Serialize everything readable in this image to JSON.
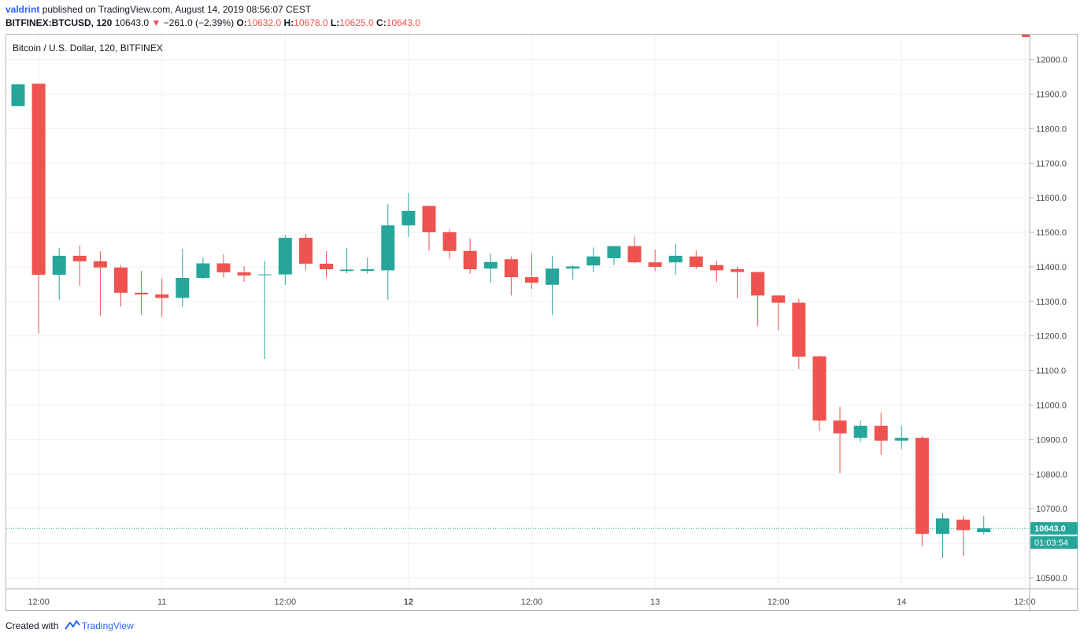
{
  "header": {
    "author": "valdrint",
    "published_text": "published on TradingView.com, August 14, 2019 08:56:07 CEST",
    "symbol": "BITFINEX:BTCUSD, 120",
    "last": "10643.0",
    "change": "−261.0 (−2.39%)",
    "o_label": "O:",
    "o": "10632.0",
    "h_label": "H:",
    "h": "10678.0",
    "l_label": "L:",
    "l": "10625.0",
    "c_label": "C:",
    "c": "10643.0"
  },
  "footer": {
    "created_with": "Created with",
    "brand": "TradingView"
  },
  "colors": {
    "up": "#26a69a",
    "down": "#ef5350",
    "grid": "#eef0f3",
    "axis": "#b2b5be",
    "text": "#4a4a4a"
  },
  "chart_data": {
    "type": "candlestick",
    "title": "Bitcoin / U.S. Dollar, 120, BITFINEX",
    "y_range": [
      10468,
      12072
    ],
    "y_ticks": [
      "10500.0",
      "10600.0",
      "10700.0",
      "10800.0",
      "10900.0",
      "11000.0",
      "11100.0",
      "11200.0",
      "11300.0",
      "11400.0",
      "11500.0",
      "11600.0",
      "11700.0",
      "11800.0",
      "11900.0",
      "12000.0"
    ],
    "x_labels": [
      {
        "label": "12:00",
        "bar": 1,
        "bold": false
      },
      {
        "label": "11",
        "bar": 7,
        "bold": false
      },
      {
        "label": "12:00",
        "bar": 13,
        "bold": false
      },
      {
        "label": "12",
        "bar": 19,
        "bold": true
      },
      {
        "label": "12:00",
        "bar": 25,
        "bold": false
      },
      {
        "label": "13",
        "bar": 31,
        "bold": false
      },
      {
        "label": "12:00",
        "bar": 37,
        "bold": false
      },
      {
        "label": "14",
        "bar": 43,
        "bold": false
      },
      {
        "label": "12:00",
        "bar": 49,
        "bold": false
      }
    ],
    "last_price_label": "10643.0",
    "countdown_label": "01:03:54",
    "last_price": 10643,
    "candles": [
      [
        11865,
        11930,
        11865,
        11928
      ],
      [
        11930,
        11930,
        11207,
        11377
      ],
      [
        11377,
        11455,
        11305,
        11432
      ],
      [
        11432,
        11462,
        11344,
        11416
      ],
      [
        11416,
        11445,
        11259,
        11398
      ],
      [
        11398,
        11405,
        11285,
        11325
      ],
      [
        11325,
        11388,
        11262,
        11320
      ],
      [
        11320,
        11366,
        11255,
        11310
      ],
      [
        11310,
        11452,
        11285,
        11368
      ],
      [
        11368,
        11427,
        11365,
        11410
      ],
      [
        11410,
        11436,
        11369,
        11384
      ],
      [
        11384,
        11402,
        11357,
        11375
      ],
      [
        11378,
        11417,
        11133,
        11378
      ],
      [
        11378,
        11492,
        11348,
        11484
      ],
      [
        11484,
        11496,
        11390,
        11409
      ],
      [
        11409,
        11446,
        11369,
        11393
      ],
      [
        11388,
        11455,
        11381,
        11392
      ],
      [
        11388,
        11427,
        11381,
        11393
      ],
      [
        11390,
        11581,
        11305,
        11520
      ],
      [
        11520,
        11614,
        11487,
        11562
      ],
      [
        11576,
        11578,
        11446,
        11500
      ],
      [
        11500,
        11508,
        11424,
        11446
      ],
      [
        11446,
        11482,
        11380,
        11393
      ],
      [
        11395,
        11438,
        11353,
        11414
      ],
      [
        11422,
        11430,
        11317,
        11370
      ],
      [
        11370,
        11438,
        11336,
        11354
      ],
      [
        11348,
        11432,
        11260,
        11395
      ],
      [
        11395,
        11404,
        11363,
        11401
      ],
      [
        11404,
        11456,
        11384,
        11430
      ],
      [
        11425,
        11460,
        11405,
        11460
      ],
      [
        11460,
        11488,
        11410,
        11413
      ],
      [
        11413,
        11450,
        11387,
        11400
      ],
      [
        11413,
        11467,
        11378,
        11432
      ],
      [
        11430,
        11447,
        11393,
        11400
      ],
      [
        11405,
        11418,
        11357,
        11390
      ],
      [
        11393,
        11400,
        11310,
        11385
      ],
      [
        11385,
        11385,
        11228,
        11317
      ],
      [
        11317,
        11318,
        11216,
        11296
      ],
      [
        11296,
        11308,
        11104,
        11140
      ],
      [
        11141,
        11143,
        10925,
        10955
      ],
      [
        10955,
        10995,
        10803,
        10918
      ],
      [
        10905,
        10955,
        10893,
        10940
      ],
      [
        10940,
        10978,
        10856,
        10897
      ],
      [
        10897,
        10940,
        10873,
        10905
      ],
      [
        10905,
        10910,
        10592,
        10627
      ],
      [
        10627,
        10688,
        10557,
        10672
      ],
      [
        10668,
        10678,
        10562,
        10638
      ],
      [
        10632,
        10678,
        10625,
        10643
      ]
    ]
  }
}
